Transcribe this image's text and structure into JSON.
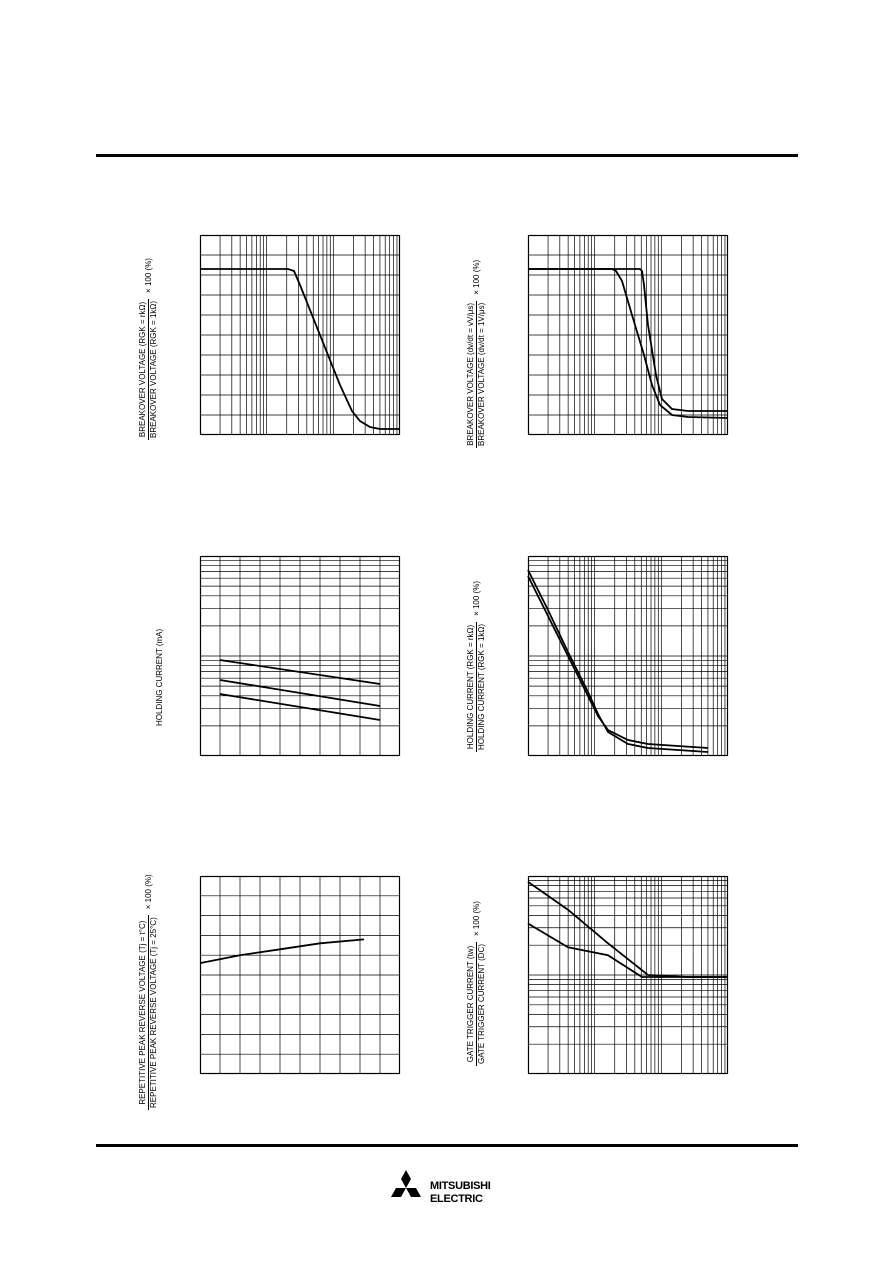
{
  "labels": {
    "c1_num": "BREAKOVER VOLTAGE (RGK = rkΩ)",
    "c1_den": "BREAKOVER VOLTAGE (RGK = 1kΩ)",
    "c1_mult": "× 100 (%)",
    "c2_num": "BREAKOVER VOLTAGE (dv/dt = vV/μs)",
    "c2_den": "BREAKOVER VOLTAGE (dv/dt = 1V/μs)",
    "c2_mult": "× 100 (%)",
    "c3_single": "HOLDING CURRENT (mA)",
    "c4_num": "HOLDING CURRENT (RGK = rkΩ)",
    "c4_den": "HOLDING CURRENT (RGK = 1kΩ)",
    "c4_mult": "× 100 (%)",
    "c5_num": "REPETITIVE PEAK REVERSE VOLTAGE (Tj = t°C)",
    "c5_den": "REPETITIVE PEAK REVERSE VOLTAGE (Tj = 25°C)",
    "c5_mult": "× 100 (%)",
    "c6_num": "GATE TRIGGER CURRENT (tw)",
    "c6_den": "GATE TRIGGER CURRENT (DC)",
    "c6_mult": "× 100 (%)"
  },
  "brand": {
    "line1": "MITSUBISHI",
    "line2": "ELECTRIC"
  },
  "chart_data": [
    {
      "type": "line",
      "ylabel": "BREAKOVER VOLTAGE (RGK = rkΩ) / BREAKOVER VOLTAGE (RGK = 1kΩ) × 100 (%)",
      "xlim": [
        0,
        1
      ],
      "ylim": [
        0,
        1
      ],
      "xscale": "log",
      "yscale": "linear",
      "grid": true,
      "series": [
        {
          "x": [
            0,
            0.44,
            0.47,
            0.5,
            0.6,
            0.7,
            0.76,
            0.8,
            0.85,
            0.9,
            1.0
          ],
          "y": [
            0.83,
            0.83,
            0.82,
            0.75,
            0.5,
            0.25,
            0.12,
            0.07,
            0.04,
            0.03,
            0.03
          ]
        }
      ]
    },
    {
      "type": "line",
      "ylabel": "BREAKOVER VOLTAGE (dv/dt = vV/μs) / BREAKOVER VOLTAGE (dv/dt = 1V/μs) × 100 (%)",
      "xlim": [
        0,
        1
      ],
      "ylim": [
        0,
        1
      ],
      "xscale": "log",
      "yscale": "linear",
      "grid": true,
      "series": [
        {
          "x": [
            0,
            0.42,
            0.44,
            0.47,
            0.52,
            0.58,
            0.62,
            0.66,
            0.72,
            0.8,
            1.0
          ],
          "y": [
            0.83,
            0.83,
            0.82,
            0.77,
            0.6,
            0.4,
            0.25,
            0.15,
            0.1,
            0.09,
            0.085
          ]
        },
        {
          "x": [
            0,
            0.56,
            0.57,
            0.58,
            0.6,
            0.64,
            0.67,
            0.72,
            0.8,
            1.0
          ],
          "y": [
            0.83,
            0.83,
            0.82,
            0.75,
            0.55,
            0.3,
            0.18,
            0.13,
            0.12,
            0.12
          ]
        }
      ]
    },
    {
      "type": "line",
      "ylabel": "HOLDING CURRENT (mA)",
      "xlim": [
        0,
        1
      ],
      "ylim": [
        0,
        1
      ],
      "xscale": "linear",
      "yscale": "log",
      "grid": true,
      "series": [
        {
          "x": [
            0.1,
            0.9
          ],
          "y": [
            0.48,
            0.36
          ]
        },
        {
          "x": [
            0.1,
            0.9
          ],
          "y": [
            0.38,
            0.25
          ]
        },
        {
          "x": [
            0.1,
            0.9
          ],
          "y": [
            0.31,
            0.18
          ]
        }
      ]
    },
    {
      "type": "line",
      "ylabel": "HOLDING CURRENT (RGK = rkΩ) / HOLDING CURRENT (RGK = 1kΩ) × 100 (%)",
      "xlim": [
        0,
        1
      ],
      "ylim": [
        0,
        1
      ],
      "xscale": "log",
      "yscale": "log",
      "grid": true,
      "series": [
        {
          "x": [
            0,
            0.1,
            0.2,
            0.3,
            0.35,
            0.4,
            0.5,
            0.6,
            0.9
          ],
          "y": [
            0.9,
            0.7,
            0.5,
            0.3,
            0.2,
            0.13,
            0.08,
            0.06,
            0.04
          ]
        },
        {
          "x": [
            0,
            0.1,
            0.2,
            0.3,
            0.35,
            0.4,
            0.5,
            0.6,
            0.9
          ],
          "y": [
            0.93,
            0.73,
            0.52,
            0.32,
            0.21,
            0.12,
            0.06,
            0.04,
            0.02
          ]
        }
      ]
    },
    {
      "type": "line",
      "ylabel": "REPETITIVE PEAK REVERSE VOLTAGE (Tj = t°C) / REPETITIVE PEAK REVERSE VOLTAGE (Tj = 25°C) × 100 (%)",
      "xlim": [
        0,
        1
      ],
      "ylim": [
        0,
        1
      ],
      "xscale": "linear",
      "yscale": "linear",
      "grid": true,
      "series": [
        {
          "x": [
            0,
            0.2,
            0.4,
            0.6,
            0.82
          ],
          "y": [
            0.56,
            0.6,
            0.63,
            0.66,
            0.68
          ]
        }
      ]
    },
    {
      "type": "line",
      "ylabel": "GATE TRIGGER CURRENT (tw) / GATE TRIGGER CURRENT (DC) × 100 (%)",
      "xlim": [
        0,
        1
      ],
      "ylim": [
        0,
        1
      ],
      "xscale": "log",
      "yscale": "log",
      "grid": true,
      "series": [
        {
          "x": [
            0,
            0.2,
            0.4,
            0.6,
            0.8,
            1.0
          ],
          "y": [
            0.97,
            0.83,
            0.66,
            0.5,
            0.49,
            0.49
          ]
        },
        {
          "x": [
            0,
            0.2,
            0.4,
            0.57,
            0.6,
            1.0
          ],
          "y": [
            0.76,
            0.64,
            0.6,
            0.49,
            0.49,
            0.49
          ]
        }
      ]
    }
  ]
}
